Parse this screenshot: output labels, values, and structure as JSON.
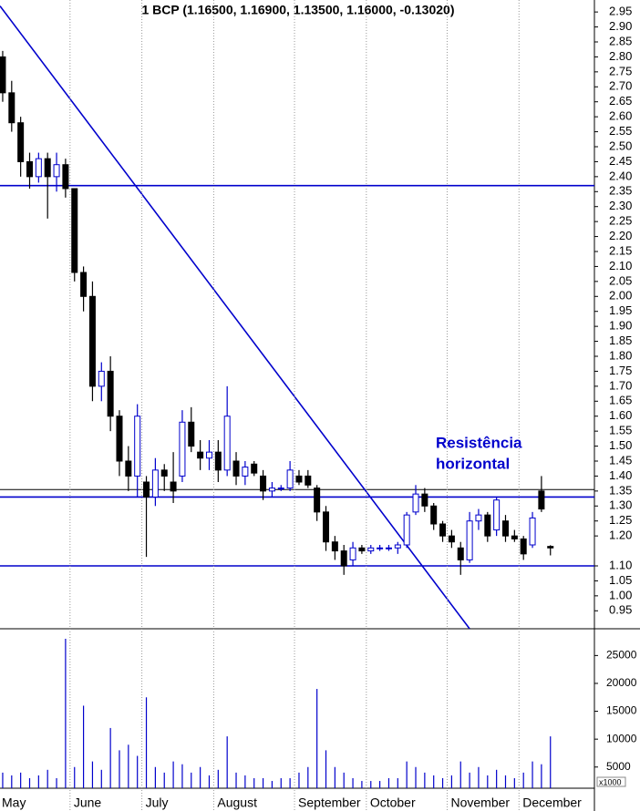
{
  "chart_data": {
    "type": "candlestick",
    "title": "1 BCP (1.16500, 1.16900, 1.13500, 1.16000, -0.13020)",
    "open": [
      2.8,
      2.68,
      2.58,
      2.45,
      2.4,
      2.46,
      2.4,
      2.44,
      2.36,
      2.08,
      2.0,
      1.7,
      1.75,
      1.6,
      1.45,
      1.4,
      1.38,
      1.33,
      1.42,
      1.38,
      1.4,
      1.58,
      1.48,
      1.46,
      1.48,
      1.42,
      1.45,
      1.4,
      1.44,
      1.4,
      1.35,
      1.36,
      1.36,
      1.4,
      1.4,
      1.36,
      1.28,
      1.18,
      1.15,
      1.12,
      1.16,
      1.15,
      1.16,
      1.16,
      1.16,
      1.17,
      1.28,
      1.34,
      1.3,
      1.24,
      1.2,
      1.16,
      1.12,
      1.25,
      1.27,
      1.22,
      1.25,
      1.2,
      1.19,
      1.17,
      1.35,
      1.165
    ],
    "high": [
      2.82,
      2.72,
      2.6,
      2.48,
      2.48,
      2.48,
      2.48,
      2.46,
      2.36,
      2.1,
      2.05,
      1.78,
      1.8,
      1.62,
      1.5,
      1.64,
      1.4,
      1.46,
      1.44,
      1.48,
      1.62,
      1.63,
      1.52,
      1.52,
      1.52,
      1.7,
      1.48,
      1.45,
      1.45,
      1.42,
      1.38,
      1.37,
      1.45,
      1.42,
      1.42,
      1.37,
      1.3,
      1.2,
      1.17,
      1.18,
      1.17,
      1.17,
      1.17,
      1.17,
      1.18,
      1.28,
      1.37,
      1.36,
      1.31,
      1.25,
      1.22,
      1.18,
      1.28,
      1.29,
      1.28,
      1.33,
      1.27,
      1.22,
      1.2,
      1.28,
      1.4,
      1.169
    ],
    "low": [
      2.65,
      2.55,
      2.4,
      2.36,
      2.38,
      2.26,
      2.35,
      2.33,
      2.05,
      1.95,
      1.65,
      1.65,
      1.55,
      1.4,
      1.35,
      1.33,
      1.13,
      1.3,
      1.35,
      1.31,
      1.38,
      1.48,
      1.42,
      1.42,
      1.38,
      1.4,
      1.37,
      1.37,
      1.4,
      1.32,
      1.33,
      1.35,
      1.35,
      1.37,
      1.36,
      1.25,
      1.15,
      1.12,
      1.07,
      1.1,
      1.14,
      1.14,
      1.15,
      1.15,
      1.14,
      1.16,
      1.27,
      1.28,
      1.22,
      1.18,
      1.16,
      1.07,
      1.11,
      1.22,
      1.18,
      1.2,
      1.18,
      1.18,
      1.12,
      1.16,
      1.28,
      1.135
    ],
    "close": [
      2.68,
      2.58,
      2.45,
      2.4,
      2.46,
      2.4,
      2.44,
      2.36,
      2.08,
      2.0,
      1.7,
      1.75,
      1.6,
      1.45,
      1.4,
      1.6,
      1.33,
      1.42,
      1.4,
      1.35,
      1.58,
      1.5,
      1.46,
      1.48,
      1.42,
      1.6,
      1.4,
      1.43,
      1.41,
      1.35,
      1.36,
      1.36,
      1.42,
      1.38,
      1.37,
      1.28,
      1.18,
      1.15,
      1.1,
      1.16,
      1.15,
      1.16,
      1.16,
      1.16,
      1.17,
      1.27,
      1.34,
      1.3,
      1.24,
      1.2,
      1.18,
      1.12,
      1.25,
      1.27,
      1.2,
      1.32,
      1.2,
      1.19,
      1.14,
      1.26,
      1.29,
      1.16
    ],
    "up_color": "#0000cc",
    "down_color": "#000000",
    "xlim": [
      -0.3,
      65.9
    ],
    "ylim": [
      0.89,
      2.99
    ],
    "yticks": [
      0.95,
      {
        "value": 1,
        "label": "1.00"
      },
      1.05,
      {
        "value": 1.1,
        "label": "1.10"
      },
      {
        "value": 1.2,
        "label": "1.20"
      },
      1.25,
      {
        "value": 1.3,
        "label": "1.30"
      },
      1.35,
      {
        "value": 1.4,
        "label": "1.40"
      },
      1.45,
      {
        "value": 1.5,
        "label": "1.50"
      },
      1.55,
      {
        "value": 1.6,
        "label": "1.60"
      },
      1.65,
      {
        "value": 1.7,
        "label": "1.70"
      },
      1.75,
      {
        "value": 1.8,
        "label": "1.80"
      },
      1.85,
      {
        "value": 1.9,
        "label": "1.90"
      },
      1.95,
      {
        "value": 2,
        "label": "2.00"
      },
      2.05,
      {
        "value": 2.1,
        "label": "2.10"
      },
      2.15,
      {
        "value": 2.2,
        "label": "2.20"
      },
      2.25,
      {
        "value": 2.3,
        "label": "2.30"
      },
      2.35,
      {
        "value": 2.4,
        "label": "2.40"
      },
      2.45,
      {
        "value": 2.5,
        "label": "2.50"
      },
      2.55,
      {
        "value": 2.6,
        "label": "2.60"
      },
      2.65,
      {
        "value": 2.7,
        "label": "2.70"
      },
      2.75,
      {
        "value": 2.8,
        "label": "2.80"
      },
      2.85,
      {
        "value": 2.9,
        "label": "2.90"
      },
      2.95
    ],
    "months": [
      {
        "label": "May",
        "start": 0
      },
      {
        "label": "June",
        "start": 8
      },
      {
        "label": "July",
        "start": 16
      },
      {
        "label": "August",
        "start": 24
      },
      {
        "label": "September",
        "start": 33
      },
      {
        "label": "October",
        "start": 41
      },
      {
        "label": "November",
        "start": 50
      },
      {
        "label": "December",
        "start": 58
      }
    ],
    "levels": [
      {
        "value": 2.37,
        "color": "#0000cc"
      },
      {
        "value": 1.355,
        "color": "#000000"
      },
      {
        "value": 1.33,
        "color": "#0000cc"
      },
      {
        "value": 1.1,
        "color": "#0000cc"
      }
    ],
    "trendline": {
      "color": "#0000cc",
      "points": [
        [
          -0.3,
          2.97
        ],
        [
          52,
          0.89
        ]
      ]
    },
    "annotation": {
      "lines": [
        "Resistência",
        "horizontal"
      ],
      "color": "#0000cc"
    },
    "volume": {
      "values": [
        4000,
        3500,
        4000,
        3000,
        3500,
        4500,
        3000,
        28000,
        5000,
        16000,
        6000,
        4500,
        12000,
        8000,
        9000,
        7000,
        17500,
        5000,
        4000,
        6000,
        5500,
        4000,
        5000,
        3500,
        4500,
        10500,
        4000,
        3500,
        3000,
        3000,
        2500,
        3000,
        3000,
        4000,
        5000,
        19000,
        8000,
        5000,
        4000,
        3000,
        2500,
        2500,
        2500,
        3000,
        3000,
        6000,
        5000,
        4000,
        3500,
        3000,
        3500,
        6000,
        4000,
        5000,
        3500,
        4500,
        3500,
        3000,
        4000,
        6000,
        5500,
        10500
      ],
      "color": "#0000cc",
      "ylim": [
        1200,
        29800
      ],
      "yticks": [
        5000,
        10000,
        15000,
        20000,
        25000
      ],
      "unit_label": "x1000"
    }
  }
}
